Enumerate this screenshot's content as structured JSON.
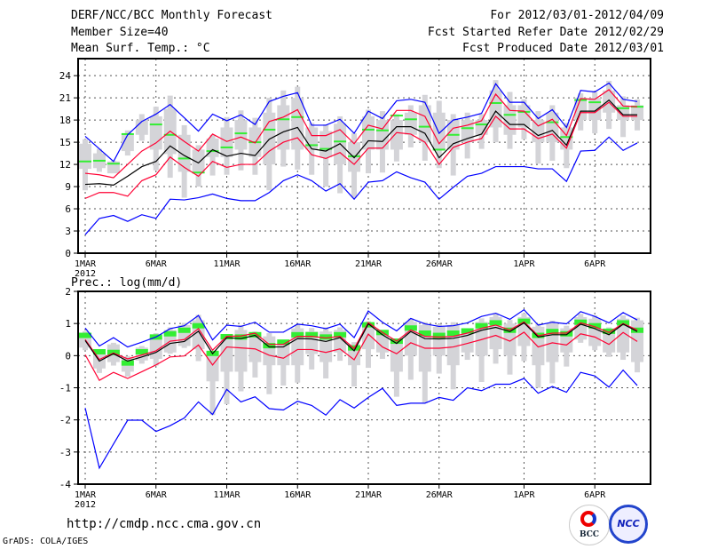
{
  "header": {
    "title": "DERF/NCC/BCC Monthly Forecast",
    "member_size": "Member Size=40",
    "variable": "Mean Surf. Temp.: °C",
    "period": "For 2012/03/01-2012/04/09",
    "start_date": "Fcst Started Refer Date 2012/02/29",
    "produced_date": "Fcst Produced Date 2012/03/01"
  },
  "footer": {
    "url": "http://cmdp.ncc.cma.gov.cn",
    "credit": "GrADS: COLA/IGES",
    "logo_left": "BCC",
    "logo_right": "NCC"
  },
  "colors": {
    "max_min": "#0000ff",
    "spread": "#ff0033",
    "mean": "#000000",
    "obs": "#33ee33",
    "box": "#d4d4d8"
  },
  "chart_data": [
    {
      "type": "line",
      "title": "Mean Surf. Temp.: °C",
      "ylim": [
        0,
        26.3
      ],
      "yticks": [
        0,
        3,
        6,
        9,
        12,
        15,
        18,
        21,
        24
      ],
      "xtick_labels": [
        "1MAR",
        "6MAR",
        "11MAR",
        "16MAR",
        "21MAR",
        "26MAR",
        "1APR",
        "6APR"
      ],
      "xtick_days": [
        0,
        5,
        10,
        15,
        20,
        25,
        31,
        36
      ],
      "year_label": "2012",
      "grid": true,
      "series": [
        {
          "name": "max",
          "color": "#0000ff",
          "values": [
            15.8,
            14.1,
            12.4,
            16,
            17.8,
            18.8,
            20.1,
            18.3,
            16.5,
            18.8,
            17.9,
            18.7,
            17.4,
            20.5,
            21.2,
            21.7,
            17.3,
            17.3,
            18.1,
            16.2,
            19.2,
            18.2,
            20.6,
            20.8,
            20.4,
            16.2,
            18,
            18.4,
            18.9,
            22.9,
            20.4,
            20.4,
            18.2,
            19.4,
            17,
            22,
            21.8,
            23,
            20.8,
            20.5
          ]
        },
        {
          "name": "upper",
          "color": "#ff0033",
          "values": [
            10.8,
            10.6,
            10.2,
            12,
            13.8,
            14.9,
            16.5,
            15.1,
            13.8,
            16.1,
            15.1,
            15.7,
            14.9,
            17.8,
            18.4,
            19.4,
            15.9,
            15.9,
            16.7,
            14.8,
            17.3,
            16.8,
            19.3,
            19.3,
            18.5,
            14.8,
            16.9,
            17.3,
            17.9,
            21.5,
            19.3,
            19.2,
            17.2,
            18.1,
            15.9,
            20.9,
            20.8,
            22.1,
            19.9,
            19.8
          ]
        },
        {
          "name": "mean",
          "color": "#000000",
          "values": [
            9.3,
            9.4,
            9.2,
            10.4,
            11.7,
            12.4,
            14.5,
            13.2,
            12.2,
            14,
            13.1,
            13.5,
            13.2,
            15.4,
            16.4,
            17,
            14.1,
            13.8,
            14.8,
            12.9,
            15.2,
            15.1,
            17.1,
            17.1,
            16.2,
            12.9,
            14.8,
            15.5,
            16.1,
            19.2,
            17.4,
            17.4,
            15.9,
            16.6,
            14.6,
            19.2,
            19.2,
            20.7,
            18.7,
            18.7
          ]
        },
        {
          "name": "lower",
          "color": "#ff0033",
          "values": [
            7.4,
            8.2,
            8.2,
            7.7,
            9.8,
            10.6,
            13,
            11.6,
            10.4,
            12.4,
            11.6,
            12,
            12,
            13.8,
            15,
            15.6,
            13.3,
            12.8,
            13.6,
            12,
            14.2,
            14.2,
            16.3,
            16.1,
            15,
            12,
            14.3,
            15,
            15.5,
            18.5,
            16.8,
            16.8,
            15.5,
            16.1,
            14.2,
            19,
            19,
            20.4,
            18.5,
            18.5
          ]
        },
        {
          "name": "min",
          "color": "#0000ff",
          "values": [
            2.5,
            4.7,
            5.1,
            4.3,
            5.2,
            4.7,
            7.3,
            7.2,
            7.5,
            8,
            7.4,
            7.1,
            7.1,
            8.2,
            9.8,
            10.6,
            9.8,
            8.4,
            9.4,
            7.3,
            9.6,
            9.8,
            11,
            10.2,
            9.6,
            7.3,
            8.9,
            10.4,
            10.8,
            11.7,
            11.7,
            11.7,
            11.4,
            11.4,
            9.7,
            13.8,
            13.9,
            15.7,
            13.9,
            14.9
          ]
        }
      ],
      "observed": [
        12.4,
        12.5,
        12.1,
        16.1,
        null,
        17.4,
        16,
        12.8,
        10.9,
        13.8,
        14.3,
        16.2,
        15,
        16.7,
        18.1,
        18.4,
        14.6,
        14.1,
        15.1,
        13.1,
        16.7,
        16.6,
        18.6,
        18.1,
        17.1,
        14,
        16,
        16.9,
        17.4,
        20.3,
        18.7,
        19.1,
        null,
        17.7,
        15.7,
        20.7,
        20.4,
        null,
        19.6,
        19.8
      ],
      "boxes": [
        [
          15.4,
          14.8,
          11.4,
          8.5
        ],
        [
          14.1,
          13.5,
          11.5,
          11
        ],
        [
          12.5,
          12.4,
          10.8,
          10.8
        ],
        [
          16.6,
          16,
          13.8,
          13.2
        ],
        [
          18.8,
          18,
          16,
          15.2
        ],
        [
          19.8,
          18.5,
          14,
          11.2
        ],
        [
          21.3,
          19.5,
          13.4,
          10.2
        ],
        [
          17.3,
          16,
          11,
          7.5
        ],
        [
          14.6,
          14,
          11,
          9
        ],
        [
          16,
          15.5,
          13,
          10.5
        ],
        [
          18.4,
          17,
          13,
          10.6
        ],
        [
          19.3,
          18,
          14,
          11.2
        ],
        [
          18.3,
          17,
          13,
          10.6
        ],
        [
          21,
          19,
          12,
          8.5
        ],
        [
          22,
          20,
          14,
          11.7
        ],
        [
          22.5,
          21,
          14,
          11.3
        ],
        [
          17.6,
          17,
          14,
          10.6
        ],
        [
          17.4,
          16.5,
          13,
          9
        ],
        [
          18.5,
          17.5,
          12,
          8.1
        ],
        [
          16.2,
          15,
          11,
          7.5
        ],
        [
          19.4,
          18.5,
          14,
          10.8
        ],
        [
          19.2,
          18,
          14,
          10.9
        ],
        [
          18.8,
          18,
          14,
          12.4
        ],
        [
          20,
          19,
          16,
          14.3
        ],
        [
          21.4,
          20,
          15,
          12.5
        ],
        [
          20.6,
          19,
          14,
          11.5
        ],
        [
          18.8,
          18,
          14,
          10.5
        ],
        [
          19,
          18,
          15,
          12.8
        ],
        [
          18.8,
          18,
          16,
          14.1
        ],
        [
          23.4,
          22,
          17,
          15
        ],
        [
          21.8,
          20,
          16,
          14.1
        ],
        [
          20.8,
          20,
          17,
          15.4
        ],
        [
          19.2,
          18,
          15,
          12.1
        ],
        [
          20,
          19,
          15,
          12.5
        ],
        [
          17.6,
          17,
          14,
          11.5
        ],
        [
          21.6,
          21,
          18,
          16.6
        ],
        [
          21.8,
          21,
          18,
          16.2
        ],
        [
          23.3,
          22,
          19,
          16.8
        ],
        [
          21.2,
          20,
          18,
          15.7
        ],
        [
          20.8,
          20,
          18,
          16.6
        ]
      ]
    },
    {
      "type": "line",
      "title": "Prec.: log(mm/d)",
      "ylim": [
        -4,
        2
      ],
      "yticks": [
        -4,
        -3,
        -2,
        -1,
        0,
        1,
        2
      ],
      "xtick_labels": [
        "1MAR",
        "6MAR",
        "11MAR",
        "16MAR",
        "21MAR",
        "26MAR",
        "1APR",
        "6APR"
      ],
      "xtick_days": [
        0,
        5,
        10,
        15,
        20,
        25,
        31,
        36
      ],
      "year_label": "2012",
      "grid": true,
      "series": [
        {
          "name": "max",
          "color": "#0000ff",
          "values": [
            0.86,
            0.3,
            0.56,
            0.27,
            0.42,
            0.58,
            0.84,
            0.93,
            1.25,
            0.49,
            0.95,
            0.91,
            1.04,
            0.73,
            0.73,
            0.98,
            0.93,
            0.84,
            0.98,
            0.56,
            1.39,
            1.04,
            0.77,
            1.16,
            0.99,
            0.91,
            0.93,
            1.02,
            1.22,
            1.32,
            1.13,
            1.43,
            0.95,
            1.04,
            0.99,
            1.37,
            1.22,
            1.02,
            1.34,
            1.11
          ]
        },
        {
          "name": "upper",
          "color": "#ff0033",
          "values": [
            0.5,
            -0.12,
            0.08,
            -0.1,
            0.02,
            0.15,
            0.45,
            0.5,
            0.84,
            0.17,
            0.6,
            0.61,
            0.7,
            0.35,
            0.35,
            0.6,
            0.6,
            0.55,
            0.6,
            0.22,
            1.03,
            0.72,
            0.45,
            0.8,
            0.6,
            0.58,
            0.6,
            0.7,
            0.85,
            0.95,
            0.8,
            1.05,
            0.62,
            0.7,
            0.7,
            1.02,
            0.9,
            0.72,
            1.0,
            0.8
          ]
        },
        {
          "name": "mean",
          "color": "#000000",
          "values": [
            0.47,
            -0.17,
            0.06,
            -0.17,
            -0.04,
            0.1,
            0.38,
            0.44,
            0.76,
            0.06,
            0.56,
            0.53,
            0.63,
            0.27,
            0.27,
            0.53,
            0.52,
            0.44,
            0.56,
            0.15,
            0.99,
            0.65,
            0.38,
            0.75,
            0.53,
            0.52,
            0.54,
            0.63,
            0.79,
            0.88,
            0.75,
            1.02,
            0.58,
            0.65,
            0.65,
            0.98,
            0.84,
            0.65,
            0.98,
            0.75
          ]
        },
        {
          "name": "lower",
          "color": "#ff0033",
          "values": [
            0.03,
            -0.77,
            -0.52,
            -0.71,
            -0.5,
            -0.29,
            -0.04,
            -0.01,
            0.33,
            -0.29,
            0.27,
            0.24,
            0.21,
            0.01,
            -0.08,
            0.19,
            0.19,
            0.1,
            0.21,
            -0.13,
            0.67,
            0.27,
            0.06,
            0.4,
            0.23,
            0.23,
            0.27,
            0.38,
            0.5,
            0.63,
            0.45,
            0.73,
            0.27,
            0.4,
            0.33,
            0.68,
            0.58,
            0.35,
            0.72,
            0.44
          ]
        },
        {
          "name": "min",
          "color": "#0000ff",
          "values": [
            -1.63,
            -3.5,
            -2.75,
            -2.01,
            -2.01,
            -2.36,
            -2.18,
            -1.94,
            -1.44,
            -1.83,
            -1.05,
            -1.44,
            -1.28,
            -1.65,
            -1.69,
            -1.42,
            -1.55,
            -1.85,
            -1.37,
            -1.63,
            -1.3,
            -1.02,
            -1.55,
            -1.48,
            -1.48,
            -1.3,
            -1.39,
            -1.0,
            -1.09,
            -0.89,
            -0.89,
            -0.71,
            -1.17,
            -0.96,
            -1.14,
            -0.52,
            -0.63,
            -0.98,
            -0.45,
            -0.93
          ]
        }
      ],
      "observed": [
        0.63,
        0.12,
        0.1,
        -0.23,
        0.12,
        0.58,
        0.68,
        0.79,
        0.93,
        0.07,
        0.59,
        0.58,
        0.65,
        0.31,
        0.42,
        0.65,
        0.65,
        0.58,
        0.65,
        0.24,
        0.96,
        0.72,
        0.45,
        0.86,
        0.7,
        0.63,
        0.7,
        0.77,
        0.93,
        1.02,
        0.79,
        1.07,
        0.63,
        0.75,
        0.68,
        1.04,
        0.93,
        0.76,
        1.02,
        0.79
      ],
      "boxes": [
        [
          0.76,
          0.7,
          0.25,
          0.17
        ],
        [
          0.15,
          0.1,
          -0.4,
          -0.54
        ],
        [
          0.4,
          0.35,
          -0.2,
          -0.31
        ],
        [
          -0.01,
          -0.05,
          -0.5,
          -0.65
        ],
        [
          0.3,
          0.25,
          -0.15,
          -0.25
        ],
        [
          0.7,
          0.6,
          -0.1,
          -0.31
        ],
        [
          0.88,
          0.8,
          0.1,
          0.06
        ],
        [
          1.02,
          0.95,
          0.3,
          0.24
        ],
        [
          1.27,
          1.1,
          0.2,
          -0.17
        ],
        [
          0.15,
          0.1,
          -0.8,
          -1.85
        ],
        [
          0.65,
          0.55,
          -0.5,
          -1.51
        ],
        [
          0.95,
          0.8,
          -0.5,
          -1.11
        ],
        [
          0.75,
          0.65,
          -0.2,
          -0.68
        ],
        [
          0.7,
          0.6,
          -0.3,
          -1.2
        ],
        [
          0.47,
          0.4,
          -0.3,
          -0.93
        ],
        [
          0.98,
          0.85,
          -0.3,
          -0.84
        ],
        [
          0.86,
          0.75,
          0.05,
          -0.43
        ],
        [
          0.88,
          0.75,
          -0.2,
          -0.71
        ],
        [
          0.88,
          0.8,
          0.1,
          -0.16
        ],
        [
          0.42,
          0.35,
          -0.3,
          -0.96
        ],
        [
          1.07,
          1.0,
          0.2,
          -0.38
        ],
        [
          0.76,
          0.7,
          0.1,
          -0.1
        ],
        [
          0.47,
          0.4,
          -0.5,
          -1.28
        ],
        [
          1.16,
          1.05,
          0,
          -0.75
        ],
        [
          1.04,
          0.95,
          -0.5,
          -1.46
        ],
        [
          0.98,
          0.9,
          0,
          -0.56
        ],
        [
          1.04,
          0.95,
          -0.3,
          -1.05
        ],
        [
          0.84,
          0.75,
          0.1,
          -0.13
        ],
        [
          1.16,
          1.05,
          0,
          -0.82
        ],
        [
          1.32,
          1.2,
          0.2,
          -0.25
        ],
        [
          1.11,
          1.0,
          0,
          -0.59
        ],
        [
          1.32,
          1.2,
          0.3,
          -0.17
        ],
        [
          1.0,
          0.9,
          -0.3,
          -1.0
        ],
        [
          1.09,
          1.0,
          -0.2,
          -0.86
        ],
        [
          0.93,
          0.85,
          0.1,
          -0.34
        ],
        [
          1.3,
          1.2,
          0.5,
          0.4
        ],
        [
          1.25,
          1.15,
          0.3,
          0.17
        ],
        [
          0.88,
          0.8,
          0.1,
          -0.04
        ],
        [
          1.25,
          1.15,
          0.1,
          -0.13
        ],
        [
          1.18,
          1.1,
          -0.2,
          -0.52
        ]
      ]
    }
  ]
}
